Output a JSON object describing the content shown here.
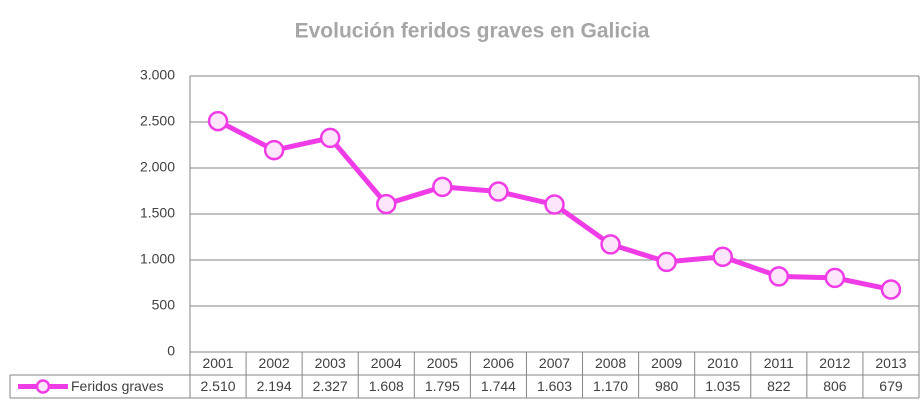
{
  "chart_data": {
    "type": "line",
    "title": "Evolución feridos graves en Galicia",
    "categories": [
      "2001",
      "2002",
      "2003",
      "2004",
      "2005",
      "2006",
      "2007",
      "2008",
      "2009",
      "2010",
      "2011",
      "2012",
      "2013"
    ],
    "series": [
      {
        "name": "Feridos graves",
        "color": "#f03ce6",
        "values": [
          2510,
          2194,
          2327,
          1608,
          1795,
          1744,
          1603,
          1170,
          980,
          1035,
          822,
          806,
          679
        ],
        "value_labels": [
          "2.510",
          "2.194",
          "2.327",
          "1.608",
          "1.795",
          "1.744",
          "1.603",
          "1.170",
          "980",
          "1.035",
          "822",
          "806",
          "679"
        ]
      }
    ],
    "ylim": [
      0,
      3000
    ],
    "yticks": [
      0,
      500,
      {
        "value": 1000,
        "label": "1.000"
      },
      {
        "value": 1500,
        "label": "1.500"
      },
      {
        "value": 2000,
        "label": "2.000"
      },
      {
        "value": 2500,
        "label": "2.500"
      },
      {
        "value": 3000,
        "label": "3.000"
      }
    ],
    "grid": true
  }
}
